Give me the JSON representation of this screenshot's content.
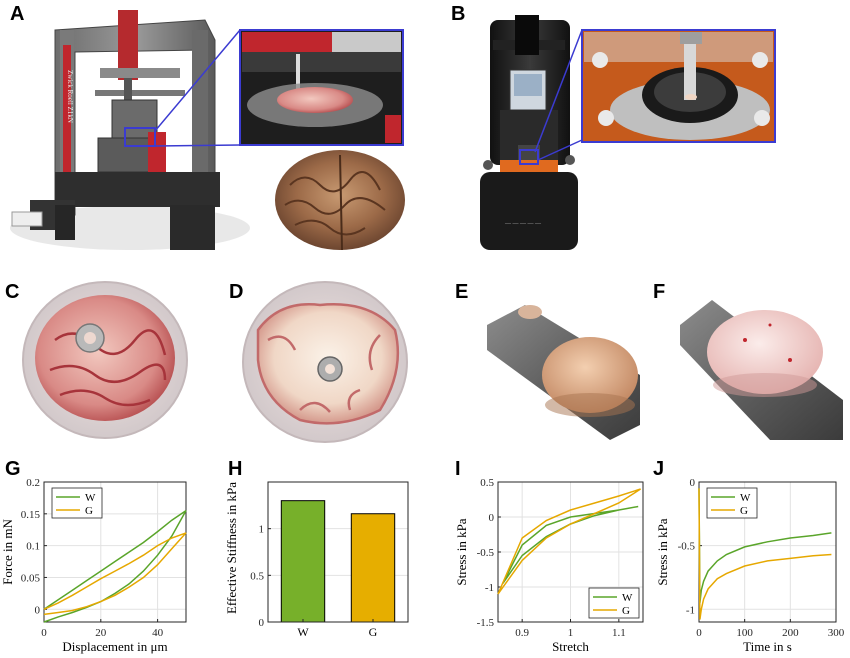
{
  "panels": {
    "A": "A",
    "B": "B",
    "C": "C",
    "D": "D",
    "E": "E",
    "F": "F",
    "G": "G",
    "H": "H",
    "I": "I",
    "J": "J"
  },
  "photos": {
    "A_machine_label": "Zwick Roell Z1kN"
  },
  "chart_data": [
    {
      "id": "G",
      "type": "line",
      "xlabel": "Displacement in μm",
      "ylabel": "Force in mN",
      "xlim": [
        0,
        50
      ],
      "ylim": [
        -0.02,
        0.2
      ],
      "xticks": [
        "0",
        "20",
        "40"
      ],
      "yticks": [
        "0",
        "0.05",
        "0.1",
        "0.15",
        "0.2"
      ],
      "grid": true,
      "legend_position": "top-left",
      "series": [
        {
          "name": "W",
          "color": "#5aa52a",
          "x": [
            0,
            5,
            10,
            15,
            20,
            25,
            30,
            35,
            40,
            45,
            50,
            45,
            40,
            35,
            30,
            25,
            20,
            15,
            10,
            5,
            0
          ],
          "y": [
            0.0,
            0.015,
            0.03,
            0.045,
            0.06,
            0.075,
            0.09,
            0.105,
            0.122,
            0.14,
            0.155,
            0.115,
            0.085,
            0.06,
            0.04,
            0.025,
            0.012,
            0.003,
            -0.005,
            -0.012,
            -0.02
          ]
        },
        {
          "name": "G",
          "color": "#e6a800",
          "x": [
            0,
            5,
            10,
            15,
            20,
            25,
            30,
            35,
            40,
            45,
            50,
            45,
            40,
            35,
            30,
            25,
            20,
            15,
            10,
            5,
            0
          ],
          "y": [
            0.0,
            0.01,
            0.022,
            0.035,
            0.048,
            0.06,
            0.072,
            0.085,
            0.1,
            0.112,
            0.12,
            0.095,
            0.07,
            0.05,
            0.035,
            0.022,
            0.012,
            0.004,
            -0.002,
            -0.005,
            -0.008
          ]
        }
      ]
    },
    {
      "id": "H",
      "type": "bar",
      "ylabel": "Effective Stiffness in kPa",
      "categories": [
        "W",
        "G"
      ],
      "values": [
        1.3,
        1.16
      ],
      "colors": [
        "#77b02a",
        "#e6ae00"
      ],
      "ylim": [
        0,
        1.5
      ],
      "yticks": [
        "0",
        "0.5",
        "1"
      ],
      "grid": true
    },
    {
      "id": "I",
      "type": "line",
      "xlabel": "Stretch",
      "ylabel": "Stress in kPa",
      "xlim": [
        0.85,
        1.15
      ],
      "ylim": [
        -1.5,
        0.5
      ],
      "xticks": [
        "0.9",
        "1",
        "1.1"
      ],
      "yticks": [
        "-1.5",
        "-1",
        "-0.5",
        "0",
        "0.5"
      ],
      "grid": true,
      "legend_position": "bottom-right",
      "series": [
        {
          "name": "W",
          "color": "#5aa52a",
          "x": [
            0.86,
            0.9,
            0.95,
            1.0,
            1.05,
            1.1,
            1.14,
            1.1,
            1.05,
            1.0,
            0.95,
            0.9,
            0.86
          ],
          "y": [
            -0.95,
            -0.55,
            -0.28,
            -0.1,
            0.02,
            0.1,
            0.15,
            0.1,
            0.05,
            0.0,
            -0.12,
            -0.4,
            -0.95
          ]
        },
        {
          "name": "G",
          "color": "#e6a800",
          "x": [
            0.85,
            0.9,
            0.95,
            1.0,
            1.05,
            1.1,
            1.145,
            1.1,
            1.05,
            1.0,
            0.95,
            0.9,
            0.85
          ],
          "y": [
            -1.1,
            -0.62,
            -0.3,
            -0.1,
            0.05,
            0.2,
            0.4,
            0.3,
            0.2,
            0.1,
            -0.05,
            -0.3,
            -1.1
          ]
        }
      ]
    },
    {
      "id": "J",
      "type": "line",
      "xlabel": "Time in s",
      "ylabel": "Stress in kPa",
      "xlim": [
        0,
        300
      ],
      "ylim": [
        -1.1,
        0
      ],
      "xticks": [
        "0",
        "100",
        "200",
        "300"
      ],
      "yticks": [
        "0",
        "-0.5",
        "-1"
      ],
      "grid": true,
      "legend_position": "top-left",
      "series": [
        {
          "name": "W",
          "color": "#5aa52a",
          "x": [
            0,
            2,
            5,
            10,
            20,
            40,
            60,
            100,
            150,
            200,
            250,
            290
          ],
          "y": [
            -0.05,
            -0.95,
            -0.85,
            -0.78,
            -0.7,
            -0.62,
            -0.57,
            -0.51,
            -0.47,
            -0.44,
            -0.42,
            -0.4
          ]
        },
        {
          "name": "G",
          "color": "#e6a800",
          "x": [
            0,
            2,
            5,
            10,
            20,
            40,
            60,
            100,
            150,
            200,
            250,
            290
          ],
          "y": [
            -0.05,
            -1.08,
            -1.0,
            -0.92,
            -0.84,
            -0.76,
            -0.72,
            -0.66,
            -0.62,
            -0.6,
            -0.58,
            -0.57
          ]
        }
      ]
    }
  ]
}
